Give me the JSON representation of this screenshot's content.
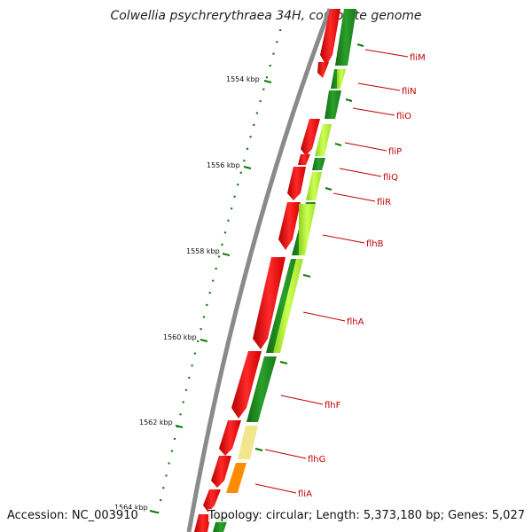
{
  "title": "Colwellia psychrerythraea 34H, complete genome",
  "footer": {
    "accession": "Accession: NC_003910",
    "topology": "Topology: circular; Length: 5,373,180 bp; Genes: 5,027"
  },
  "ticks": [
    "1554 kbp",
    "1556 kbp",
    "1558 kbp",
    "1560 kbp",
    "1562 kbp",
    "1564 kbp"
  ],
  "genes": [
    "fliM",
    "fliN",
    "fliO",
    "fliP",
    "fliQ",
    "fliR",
    "flhB",
    "flhA",
    "flhF",
    "flhG",
    "fliA"
  ],
  "colors": {
    "backbone": "#8a8a8a",
    "forward_strand": "#ff0000",
    "cog_dark_green": "#1f8a1f",
    "cog_light_green": "#b6f23a",
    "cog_pale_yellow": "#f2e68c",
    "cog_orange": "#ff8c00",
    "tick_green": "#0a7a0a",
    "label_red": "#c00000"
  }
}
